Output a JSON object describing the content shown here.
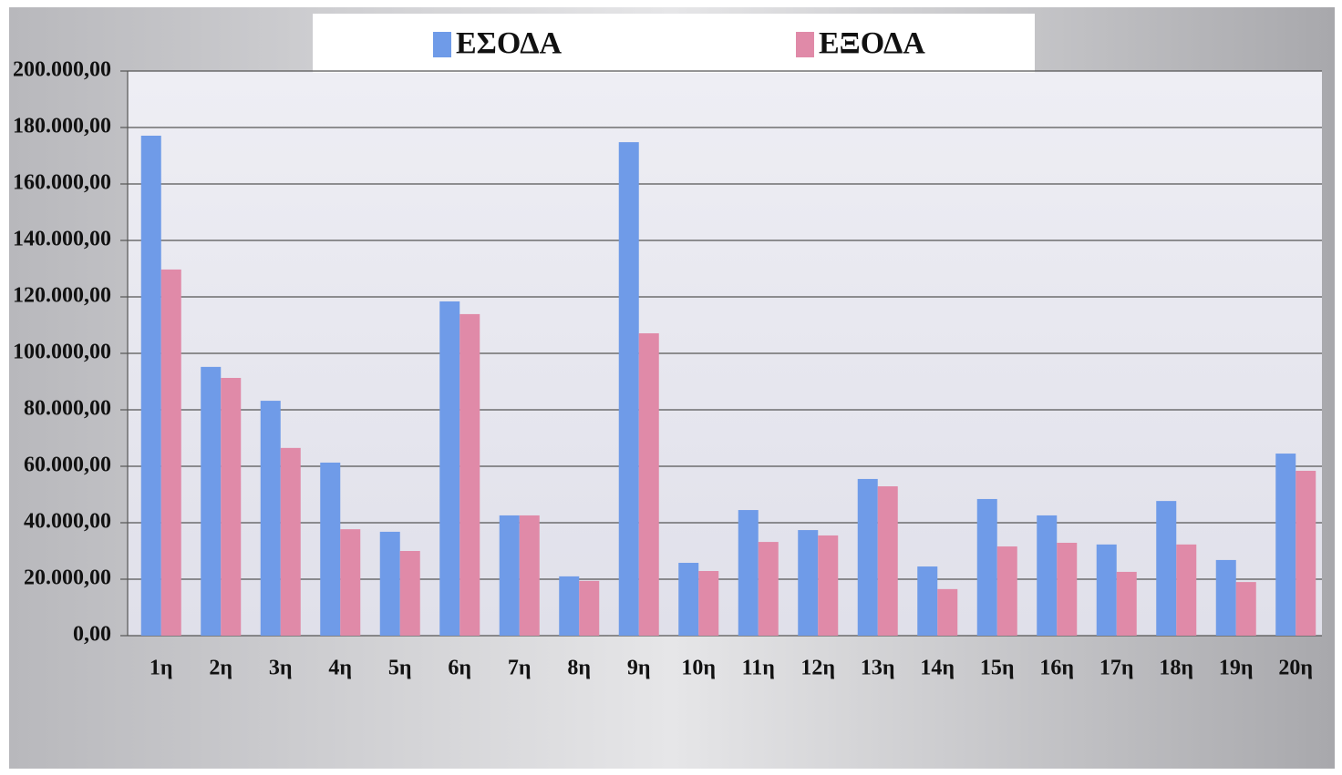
{
  "chart_data": {
    "type": "bar",
    "categories": [
      "1η",
      "2η",
      "3η",
      "4η",
      "5η",
      "6η",
      "7η",
      "8η",
      "9η",
      "10η",
      "11η",
      "12η",
      "13η",
      "14η",
      "15η",
      "16η",
      "17η",
      "18η",
      "19η",
      "20η"
    ],
    "series": [
      {
        "name": "ΕΣΟΔΑ",
        "color": "#6f9be8",
        "values": [
          177100,
          95200,
          83200,
          61300,
          36800,
          118400,
          42600,
          21000,
          174800,
          25800,
          44500,
          37400,
          55500,
          24500,
          48400,
          42600,
          32300,
          47700,
          26800,
          64500
        ]
      },
      {
        "name": "ΕΞΟΔΑ",
        "color": "#e08aa8",
        "values": [
          129700,
          91300,
          66500,
          37700,
          30000,
          113900,
          42600,
          19400,
          107100,
          22900,
          33200,
          35500,
          52900,
          16500,
          31600,
          32900,
          22600,
          32300,
          19000,
          58400
        ]
      }
    ],
    "ylim": [
      0,
      200000
    ],
    "yticks": [
      {
        "value": 0,
        "label": "0,00"
      },
      {
        "value": 20000,
        "label": "20.000,00"
      },
      {
        "value": 40000,
        "label": "40.000,00"
      },
      {
        "value": 60000,
        "label": "60.000,00"
      },
      {
        "value": 80000,
        "label": "80.000,00"
      },
      {
        "value": 100000,
        "label": "100.000,00"
      },
      {
        "value": 120000,
        "label": "120.000,00"
      },
      {
        "value": 140000,
        "label": "140.000,00"
      },
      {
        "value": 160000,
        "label": "160.000,00"
      },
      {
        "value": 180000,
        "label": "180.000,00"
      },
      {
        "value": 200000,
        "label": "200.000,00"
      }
    ],
    "grid": true,
    "legend": "top"
  }
}
